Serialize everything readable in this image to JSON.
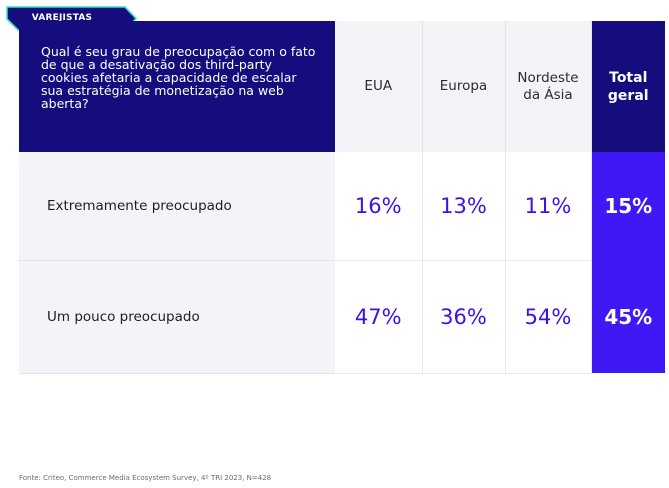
{
  "tag": {
    "label": "VAREJISTAS"
  },
  "table": {
    "question": "Qual é seu grau de preocupação com o fato de que a desativação dos third-party cookies afetaria a capacidade de escalar sua estratégia de monetização na web aberta?",
    "columns": [
      "EUA",
      "Europa",
      "Nordeste da Ásia",
      "Total geral"
    ],
    "rows": [
      {
        "label": "Extremamente preocupado",
        "values": [
          "16%",
          "13%",
          "11%",
          "15%"
        ]
      },
      {
        "label": "Um pouco preocupado",
        "values": [
          "47%",
          "36%",
          "54%",
          "45%"
        ]
      }
    ]
  },
  "colors": {
    "header_navy": "#150d7e",
    "accent_blue": "#4018f5",
    "value_text": "#3d10e8",
    "tag_border": "#2ee8c0"
  },
  "footer": {
    "source": "Fonte: Criteo, Commerce Media Ecosystem Survey, 4º TRI 2023, N=428"
  }
}
